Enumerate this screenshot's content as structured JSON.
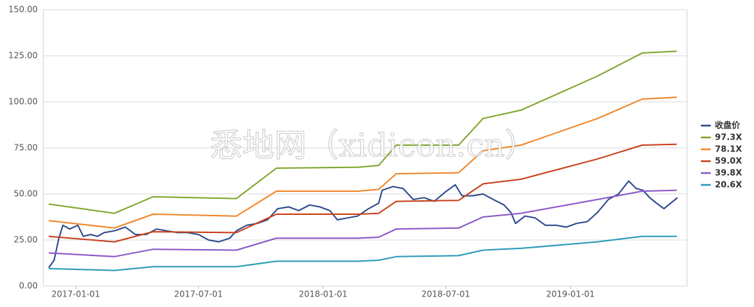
{
  "chart_data": {
    "type": "line",
    "watermark": "悉地网（xidicon.cn）",
    "xlim": [
      "2016-11-14",
      "2019-06-22"
    ],
    "xticks": [
      "2017-01-01",
      "2017-07-01",
      "2018-01-01",
      "2018-07-01",
      "2019-01-01"
    ],
    "ylim": [
      0,
      150
    ],
    "yticks": [
      {
        "value": 0,
        "label": "0.00"
      },
      {
        "value": 25,
        "label": "25.00"
      },
      {
        "value": 50,
        "label": "50.00"
      },
      {
        "value": 75,
        "label": "75.00"
      },
      {
        "value": 100,
        "label": "100.00"
      },
      {
        "value": 125,
        "label": "125.00"
      },
      {
        "value": 150,
        "label": "150.00"
      }
    ],
    "grid": true,
    "legend": "right",
    "series": [
      {
        "name": "收盘价",
        "color": "#2e4a8c",
        "x": [
          "2016-11-22",
          "2016-11-30",
          "2016-12-07",
          "2016-12-13",
          "2016-12-23",
          "2017-01-04",
          "2017-01-12",
          "2017-01-23",
          "2017-02-02",
          "2017-02-12",
          "2017-02-27",
          "2017-03-15",
          "2017-03-30",
          "2017-04-15",
          "2017-04-30",
          "2017-05-15",
          "2017-05-31",
          "2017-06-15",
          "2017-07-01",
          "2017-07-16",
          "2017-07-31",
          "2017-08-16",
          "2017-08-26",
          "2017-09-10",
          "2017-09-26",
          "2017-10-11",
          "2017-10-26",
          "2017-11-11",
          "2017-11-26",
          "2017-12-12",
          "2017-12-27",
          "2018-01-11",
          "2018-01-22",
          "2018-02-06",
          "2018-02-21",
          "2018-03-09",
          "2018-03-24",
          "2018-03-29",
          "2018-04-14",
          "2018-04-29",
          "2018-05-14",
          "2018-05-30",
          "2018-06-14",
          "2018-06-30",
          "2018-07-15",
          "2018-07-25",
          "2018-08-10",
          "2018-08-25",
          "2018-09-09",
          "2018-09-25",
          "2018-10-05",
          "2018-10-12",
          "2018-10-26",
          "2018-11-10",
          "2018-11-25",
          "2018-12-11",
          "2018-12-26",
          "2019-01-10",
          "2019-01-26",
          "2019-02-10",
          "2019-02-26",
          "2019-03-13",
          "2019-03-28",
          "2019-04-08",
          "2019-04-18",
          "2019-04-28",
          "2019-05-08",
          "2019-05-19",
          "2019-05-29",
          "2019-06-08"
        ],
        "values": [
          10,
          14,
          26,
          33,
          31,
          33,
          27,
          28,
          27,
          29,
          30,
          32,
          28,
          28,
          31,
          30,
          29,
          29,
          28,
          25,
          24,
          26,
          30,
          33,
          34,
          36,
          42,
          43,
          41,
          44,
          43,
          41,
          36,
          37,
          38,
          42,
          45,
          52,
          54,
          53,
          47,
          48,
          46,
          51,
          55,
          49,
          49,
          50,
          47,
          44,
          40,
          34,
          38,
          37,
          33,
          33,
          32,
          34,
          35,
          40,
          47,
          50,
          57,
          53,
          52,
          48,
          45,
          42,
          45,
          48
        ]
      },
      {
        "name": "97.3X",
        "color": "#7fa62c",
        "x": [
          "2016-11-22",
          "2017-02-27",
          "2017-04-25",
          "2017-08-26",
          "2017-10-24",
          "2018-02-21",
          "2018-03-24",
          "2018-04-19",
          "2018-07-20",
          "2018-08-25",
          "2018-10-20",
          "2019-02-10",
          "2019-04-17",
          "2019-06-07"
        ],
        "values": [
          44.5,
          39.5,
          48.5,
          47.5,
          64,
          64.5,
          65.5,
          76.5,
          76.5,
          91,
          95.5,
          114,
          126.5,
          127.5
        ]
      },
      {
        "name": "78.1X",
        "color": "#f0862a",
        "x": [
          "2016-11-22",
          "2017-02-27",
          "2017-04-25",
          "2017-08-26",
          "2017-10-24",
          "2018-02-21",
          "2018-03-24",
          "2018-04-19",
          "2018-07-20",
          "2018-08-25",
          "2018-10-20",
          "2019-02-10",
          "2019-04-17",
          "2019-06-07"
        ],
        "values": [
          35.5,
          31.5,
          39,
          38,
          51.5,
          51.5,
          52.5,
          61,
          61.5,
          73.5,
          76.5,
          91,
          101.5,
          102.5
        ]
      },
      {
        "name": "59.0X",
        "color": "#c8401c",
        "x": [
          "2016-11-22",
          "2017-02-27",
          "2017-04-25",
          "2017-08-26",
          "2017-10-24",
          "2018-02-21",
          "2018-03-24",
          "2018-04-19",
          "2018-07-20",
          "2018-08-25",
          "2018-10-20",
          "2019-02-10",
          "2019-04-17",
          "2019-06-07"
        ],
        "values": [
          27,
          24,
          29.5,
          29,
          39,
          39,
          39.5,
          46,
          46.5,
          55.5,
          58,
          69,
          76.5,
          77
        ]
      },
      {
        "name": "39.8X",
        "color": "#8a56c8",
        "x": [
          "2016-11-22",
          "2017-02-27",
          "2017-04-25",
          "2017-08-26",
          "2017-10-24",
          "2018-02-21",
          "2018-03-24",
          "2018-04-19",
          "2018-07-20",
          "2018-08-25",
          "2018-10-20",
          "2019-02-10",
          "2019-04-17",
          "2019-06-07"
        ],
        "values": [
          18,
          16,
          20,
          19.5,
          26,
          26,
          26.5,
          31,
          31.5,
          37.5,
          39.5,
          47,
          51.5,
          52
        ]
      },
      {
        "name": "20.6X",
        "color": "#2a9ab8",
        "x": [
          "2016-11-22",
          "2017-02-27",
          "2017-04-25",
          "2017-08-26",
          "2017-10-24",
          "2018-02-21",
          "2018-03-24",
          "2018-04-19",
          "2018-07-20",
          "2018-08-25",
          "2018-10-20",
          "2019-02-10",
          "2019-04-17",
          "2019-06-07"
        ],
        "values": [
          9.5,
          8.5,
          10.5,
          10.5,
          13.5,
          13.5,
          14,
          16,
          16.5,
          19.5,
          20.5,
          24,
          27,
          27
        ]
      }
    ]
  }
}
